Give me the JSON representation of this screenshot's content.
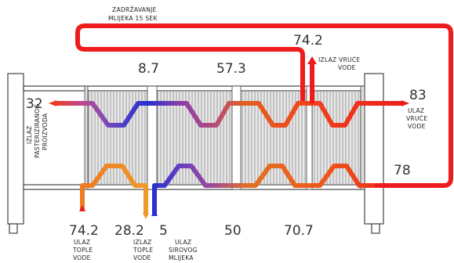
{
  "holding_label": {
    "line1": "ZADRŽAVANJE",
    "line2": "MLIJEKA 15 SEK"
  },
  "temperatures": {
    "hot_water_return": "74.2",
    "mid_top_left": "8.7",
    "mid_top_right": "57.3",
    "pasteurized_out": "32",
    "hot_water_in": "83",
    "hot_after_loop": "78",
    "warm_water_in": "74.2",
    "warm_water_out": "28.2",
    "raw_milk_in": "5",
    "bottom_mid": "50",
    "bottom_right": "70.7"
  },
  "captions": {
    "hot_water_out": {
      "line1": "IZLAZ  VRUĆE",
      "line2": "VODE"
    },
    "hot_water_in": {
      "line1": "ULAZ",
      "line2": "VRUĆE",
      "line3": "VODE"
    },
    "pasteurized_out": {
      "line1": "IZLAZ",
      "line2": "PASTERIZIRANOG",
      "line3": "PROIZVODA"
    },
    "warm_water_in": {
      "line1": "ULAZ",
      "line2": "TOPLE",
      "line3": "VODE"
    },
    "warm_water_out": {
      "line1": "IZLAZ",
      "line2": "TOPLE",
      "line3": "VODE"
    },
    "raw_milk_in": {
      "line1": "ULAZ",
      "line2": "SIROVOG",
      "line3": "MLIJEKA"
    }
  },
  "colors": {
    "hot": "#ee1c1c",
    "warm_orange": "#ee7f22",
    "purple": "#8e3fa8",
    "blue": "#2a2fd0",
    "frame": "#444444"
  }
}
